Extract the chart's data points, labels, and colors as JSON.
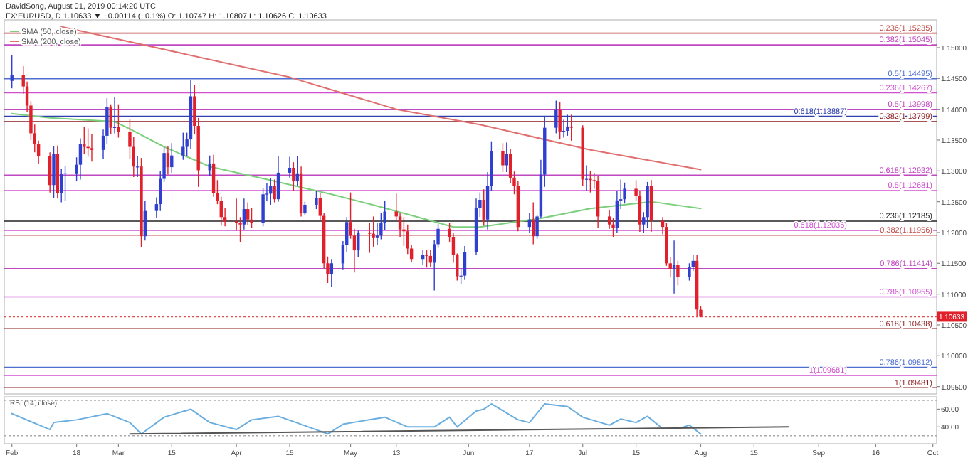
{
  "chart_data": [
    {
      "type": "candlestick",
      "title": "FX:EURUSD, D  1.10633 ▼ −0.00114 (−0.1%) O: 1.10747 H: 1.10807 L: 1.10626 C: 1.10633",
      "annotations": [
        "DavidSong, August 01, 2019 00:14:20 UTC",
        {
          "text": "1.10633",
          "y": 1.10633
        }
      ],
      "x": [
        "2019-02-01",
        "2019-02-04",
        "2019-02-05",
        "2019-02-06",
        "2019-02-07",
        "2019-02-08",
        "2019-02-11",
        "2019-02-12",
        "2019-02-13",
        "2019-02-14",
        "2019-02-15",
        "2019-02-18",
        "2019-02-19",
        "2019-02-20",
        "2019-02-21",
        "2019-02-22",
        "2019-02-25",
        "2019-02-26",
        "2019-02-27",
        "2019-02-28",
        "2019-03-01",
        "2019-03-04",
        "2019-03-05",
        "2019-03-06",
        "2019-03-07",
        "2019-03-08",
        "2019-03-11",
        "2019-03-12",
        "2019-03-13",
        "2019-03-14",
        "2019-03-15",
        "2019-03-18",
        "2019-03-19",
        "2019-03-20",
        "2019-03-21",
        "2019-03-22",
        "2019-03-25",
        "2019-03-26",
        "2019-03-27",
        "2019-03-28",
        "2019-03-29",
        "2019-04-01",
        "2019-04-02",
        "2019-04-03",
        "2019-04-04",
        "2019-04-05",
        "2019-04-08",
        "2019-04-09",
        "2019-04-10",
        "2019-04-11",
        "2019-04-12",
        "2019-04-15",
        "2019-04-16",
        "2019-04-17",
        "2019-04-18",
        "2019-04-19",
        "2019-04-22",
        "2019-04-23",
        "2019-04-24",
        "2019-04-25",
        "2019-04-26",
        "2019-04-29",
        "2019-04-30",
        "2019-05-01",
        "2019-05-02",
        "2019-05-03",
        "2019-05-06",
        "2019-05-07",
        "2019-05-08",
        "2019-05-09",
        "2019-05-10",
        "2019-05-13",
        "2019-05-14",
        "2019-05-15",
        "2019-05-16",
        "2019-05-17",
        "2019-05-20",
        "2019-05-21",
        "2019-05-22",
        "2019-05-23",
        "2019-05-24",
        "2019-05-27",
        "2019-05-28",
        "2019-05-29",
        "2019-05-30",
        "2019-05-31",
        "2019-06-03",
        "2019-06-04",
        "2019-06-05",
        "2019-06-06",
        "2019-06-07",
        "2019-06-10",
        "2019-06-11",
        "2019-06-12",
        "2019-06-13",
        "2019-06-14",
        "2019-06-17",
        "2019-06-18",
        "2019-06-19",
        "2019-06-20",
        "2019-06-21",
        "2019-06-24",
        "2019-06-25",
        "2019-06-26",
        "2019-06-27",
        "2019-06-28",
        "2019-07-01",
        "2019-07-02",
        "2019-07-03",
        "2019-07-04",
        "2019-07-05",
        "2019-07-08",
        "2019-07-09",
        "2019-07-10",
        "2019-07-11",
        "2019-07-12",
        "2019-07-15",
        "2019-07-16",
        "2019-07-17",
        "2019-07-18",
        "2019-07-19",
        "2019-07-22",
        "2019-07-23",
        "2019-07-24",
        "2019-07-25",
        "2019-07-26",
        "2019-07-29",
        "2019-07-30",
        "2019-07-31",
        "2019-08-01"
      ],
      "ohlc": [
        [
          1.1446,
          1.1488,
          1.1434,
          1.1455
        ],
        [
          1.1455,
          1.147,
          1.1425,
          1.1437
        ],
        [
          1.1437,
          1.1445,
          1.1395,
          1.1406
        ],
        [
          1.1406,
          1.1413,
          1.135,
          1.1361
        ],
        [
          1.1361,
          1.1375,
          1.133,
          1.1343
        ],
        [
          1.1343,
          1.1349,
          1.1312,
          1.1324
        ],
        [
          1.1324,
          1.133,
          1.1265,
          1.1277
        ],
        [
          1.1277,
          1.134,
          1.1256,
          1.1328
        ],
        [
          1.1328,
          1.1341,
          1.1255,
          1.1264
        ],
        [
          1.1264,
          1.1303,
          1.1249,
          1.1295
        ],
        [
          1.1295,
          1.1308,
          1.1251,
          1.1296
        ],
        [
          1.1296,
          1.1322,
          1.1283,
          1.131
        ],
        [
          1.131,
          1.1353,
          1.1286,
          1.1343
        ],
        [
          1.1343,
          1.1372,
          1.1327,
          1.1339
        ],
        [
          1.1339,
          1.1369,
          1.1323,
          1.1337
        ],
        [
          1.1337,
          1.136,
          1.1315,
          1.1334
        ],
        [
          1.1334,
          1.1367,
          1.132,
          1.1357
        ],
        [
          1.1357,
          1.1418,
          1.1343,
          1.1403
        ],
        [
          1.1403,
          1.1408,
          1.136,
          1.137
        ],
        [
          1.137,
          1.142,
          1.1361,
          1.1371
        ],
        [
          1.1371,
          1.1408,
          1.1354,
          1.1363
        ],
        [
          1.1363,
          1.1384,
          1.132,
          1.1339
        ],
        [
          1.1339,
          1.1355,
          1.129,
          1.1307
        ],
        [
          1.1307,
          1.1324,
          1.129,
          1.1307
        ],
        [
          1.1307,
          1.1321,
          1.1176,
          1.1194
        ],
        [
          1.1194,
          1.1251,
          1.1187,
          1.1235
        ],
        [
          1.1235,
          1.1257,
          1.1223,
          1.1246
        ],
        [
          1.1246,
          1.13,
          1.1235,
          1.1287
        ],
        [
          1.1287,
          1.1338,
          1.1282,
          1.1329
        ],
        [
          1.1329,
          1.134,
          1.1294,
          1.1306
        ],
        [
          1.1306,
          1.1345,
          1.1297,
          1.1325
        ],
        [
          1.1325,
          1.1362,
          1.1318,
          1.1339
        ],
        [
          1.1339,
          1.1362,
          1.1324,
          1.1351
        ],
        [
          1.1351,
          1.1448,
          1.1335,
          1.1421
        ],
        [
          1.1421,
          1.1439,
          1.136,
          1.1373
        ],
        [
          1.1373,
          1.1386,
          1.1274,
          1.1301
        ],
        [
          1.1301,
          1.1325,
          1.1292,
          1.1312
        ],
        [
          1.1312,
          1.1326,
          1.1258,
          1.1264
        ],
        [
          1.1264,
          1.1285,
          1.1246,
          1.1251
        ],
        [
          1.1251,
          1.1258,
          1.1211,
          1.1225
        ],
        [
          1.1225,
          1.124,
          1.121,
          1.1218
        ],
        [
          1.1218,
          1.1255,
          1.1203,
          1.1215
        ],
        [
          1.1215,
          1.1225,
          1.1184,
          1.1213
        ],
        [
          1.1213,
          1.1255,
          1.1205,
          1.1238
        ],
        [
          1.1238,
          1.1249,
          1.1212,
          1.1221
        ],
        [
          1.1221,
          1.124,
          1.1208,
          1.1216
        ],
        [
          1.1216,
          1.1272,
          1.121,
          1.1262
        ],
        [
          1.1262,
          1.128,
          1.1252,
          1.1263
        ],
        [
          1.1263,
          1.1288,
          1.1245,
          1.1275
        ],
        [
          1.1275,
          1.1286,
          1.1249,
          1.1254
        ],
        [
          1.1254,
          1.1324,
          1.125,
          1.1297
        ],
        [
          1.1297,
          1.1323,
          1.1289,
          1.1305
        ],
        [
          1.1305,
          1.1314,
          1.1268,
          1.1283
        ],
        [
          1.1283,
          1.1324,
          1.1276,
          1.1296
        ],
        [
          1.1296,
          1.1307,
          1.1226,
          1.1231
        ],
        [
          1.1231,
          1.125,
          1.1228,
          1.1245
        ],
        [
          1.1245,
          1.1268,
          1.1238,
          1.1256
        ],
        [
          1.1256,
          1.1264,
          1.122,
          1.1227
        ],
        [
          1.1227,
          1.1232,
          1.1142,
          1.115
        ],
        [
          1.115,
          1.1161,
          1.1118,
          1.1133
        ],
        [
          1.1133,
          1.1157,
          1.1112,
          1.115
        ],
        [
          1.115,
          1.1186,
          1.1139,
          1.118
        ],
        [
          1.118,
          1.1225,
          1.1168,
          1.1217
        ],
        [
          1.1217,
          1.1265,
          1.119,
          1.1195
        ],
        [
          1.1195,
          1.1206,
          1.1135,
          1.1171
        ],
        [
          1.1171,
          1.1203,
          1.116,
          1.12
        ],
        [
          1.12,
          1.1215,
          1.1167,
          1.1198
        ],
        [
          1.1198,
          1.1226,
          1.1177,
          1.1191
        ],
        [
          1.1191,
          1.1216,
          1.118,
          1.1195
        ],
        [
          1.1195,
          1.1232,
          1.1189,
          1.1215
        ],
        [
          1.1215,
          1.1251,
          1.1204,
          1.1234
        ],
        [
          1.1234,
          1.1263,
          1.1218,
          1.1226
        ],
        [
          1.1226,
          1.1231,
          1.1193,
          1.1205
        ],
        [
          1.1205,
          1.1225,
          1.1178,
          1.1202
        ],
        [
          1.1202,
          1.1213,
          1.1165,
          1.1174
        ],
        [
          1.1174,
          1.118,
          1.1152,
          1.1157
        ],
        [
          1.1157,
          1.1171,
          1.1148,
          1.1164
        ],
        [
          1.1164,
          1.1171,
          1.1143,
          1.1162
        ],
        [
          1.1162,
          1.1172,
          1.1144,
          1.1151
        ],
        [
          1.1151,
          1.1188,
          1.1106,
          1.1181
        ],
        [
          1.1181,
          1.1214,
          1.1175,
          1.1206
        ],
        [
          1.1206,
          1.1216,
          1.1185,
          1.1192
        ],
        [
          1.1192,
          1.12,
          1.1151,
          1.1163
        ],
        [
          1.1163,
          1.1166,
          1.1122,
          1.1129
        ],
        [
          1.1129,
          1.1141,
          1.1116,
          1.113
        ],
        [
          1.113,
          1.1178,
          1.1123,
          1.1168
        ],
        [
          1.1168,
          1.1255,
          1.1164,
          1.124
        ],
        [
          1.124,
          1.1265,
          1.1225,
          1.1253
        ],
        [
          1.1253,
          1.127,
          1.1211,
          1.1221
        ],
        [
          1.1221,
          1.1298,
          1.1205,
          1.1275
        ],
        [
          1.1275,
          1.1348,
          1.1268,
          1.1332
        ],
        [
          1.1332,
          1.1345,
          1.1298,
          1.1309
        ],
        [
          1.1309,
          1.1346,
          1.1298,
          1.1328
        ],
        [
          1.1328,
          1.1335,
          1.128,
          1.1289
        ],
        [
          1.1289,
          1.1299,
          1.1262,
          1.1275
        ],
        [
          1.1275,
          1.1284,
          1.1202,
          1.1209
        ],
        [
          1.1209,
          1.1232,
          1.1199,
          1.1221
        ],
        [
          1.1221,
          1.1249,
          1.1181,
          1.1194
        ],
        [
          1.1194,
          1.1229,
          1.119,
          1.1226
        ],
        [
          1.1226,
          1.1318,
          1.1224,
          1.1294
        ],
        [
          1.1294,
          1.1387,
          1.1274,
          1.137
        ],
        [
          1.137,
          1.1414,
          1.1361,
          1.1399
        ],
        [
          1.1399,
          1.1412,
          1.1351,
          1.1364
        ],
        [
          1.1364,
          1.1383,
          1.1354,
          1.1365
        ],
        [
          1.1365,
          1.1391,
          1.1357,
          1.1372
        ],
        [
          1.1372,
          1.1391,
          1.1349,
          1.137
        ],
        [
          1.137,
          1.1374,
          1.1276,
          1.1286
        ],
        [
          1.1286,
          1.1309,
          1.1267,
          1.1287
        ],
        [
          1.1287,
          1.13,
          1.1265,
          1.1285
        ],
        [
          1.1285,
          1.1297,
          1.1271,
          1.1283
        ],
        [
          1.1283,
          1.1291,
          1.1207,
          1.1226
        ],
        [
          1.1226,
          1.1237,
          1.1206,
          1.1213
        ],
        [
          1.1213,
          1.1223,
          1.1193,
          1.1208
        ],
        [
          1.1208,
          1.1268,
          1.12,
          1.1252
        ],
        [
          1.1252,
          1.1286,
          1.1238,
          1.1254
        ],
        [
          1.1254,
          1.1281,
          1.1247,
          1.1271
        ],
        [
          1.1271,
          1.1285,
          1.1252,
          1.126
        ],
        [
          1.126,
          1.1267,
          1.1201,
          1.1213
        ],
        [
          1.1213,
          1.1233,
          1.12,
          1.1225
        ],
        [
          1.1225,
          1.1282,
          1.1207,
          1.1275
        ],
        [
          1.1275,
          1.1285,
          1.1201,
          1.1219
        ],
        [
          1.1219,
          1.1225,
          1.1197,
          1.1209
        ],
        [
          1.1209,
          1.1215,
          1.1146,
          1.115
        ],
        [
          1.115,
          1.116,
          1.1127,
          1.1141
        ],
        [
          1.1141,
          1.1187,
          1.1101,
          1.1147
        ],
        [
          1.1147,
          1.1154,
          1.1114,
          1.1128
        ],
        [
          1.1128,
          1.115,
          1.1122,
          1.1144
        ],
        [
          1.1144,
          1.1163,
          1.1138,
          1.1154
        ],
        [
          1.1154,
          1.1163,
          1.1065,
          1.1075
        ],
        [
          1.10747,
          1.10807,
          1.10626,
          1.10633
        ]
      ],
      "series": [
        {
          "type": "line",
          "name": "SMA (50, close)",
          "color": "#7ccf7c",
          "x": [
            "2019-02-01",
            "2019-02-11",
            "2019-02-28",
            "2019-03-04",
            "2019-03-13",
            "2019-03-25",
            "2019-04-12",
            "2019-04-26",
            "2019-05-08",
            "2019-05-21",
            "2019-05-28",
            "2019-06-04",
            "2019-06-20",
            "2019-07-03",
            "2019-07-19",
            "2019-08-01"
          ],
          "values": [
            1.1393,
            1.1386,
            1.138,
            1.1368,
            1.1339,
            1.1307,
            1.1282,
            1.1262,
            1.1243,
            1.1221,
            1.1209,
            1.1209,
            1.1223,
            1.1239,
            1.125,
            1.1239
          ]
        },
        {
          "type": "line",
          "name": "SMA (200, close)",
          "color": "#e07070",
          "x": [
            "2019-02-14",
            "2019-04-15",
            "2019-05-13",
            "2019-06-04",
            "2019-07-03",
            "2019-08-01"
          ],
          "values": [
            1.1534,
            1.1452,
            1.14,
            1.1375,
            1.1334,
            1.1302
          ]
        }
      ],
      "xlim": [
        "2019-01-30",
        "2019-10-02"
      ],
      "ylim": [
        1.0938,
        1.1545
      ],
      "yticks": [
        {
          "value": 1.095,
          "label": "1.09500"
        },
        {
          "value": 1.1,
          "label": "1.10000"
        },
        {
          "value": 1.105,
          "label": "1.10500"
        },
        {
          "value": 1.11,
          "label": "1.11000"
        },
        {
          "value": 1.115,
          "label": "1.11500"
        },
        {
          "value": 1.12,
          "label": "1.12000"
        },
        {
          "value": 1.125,
          "label": "1.12500"
        },
        {
          "value": 1.13,
          "label": "1.13000"
        },
        {
          "value": 1.135,
          "label": "1.13500"
        },
        {
          "value": 1.14,
          "label": "1.14000"
        },
        {
          "value": 1.145,
          "label": "1.14500"
        },
        {
          "value": 1.15,
          "label": "1.15000"
        }
      ],
      "tick_labels": "y",
      "legend": "top left",
      "ref_lines": [
        {
          "axis": "y",
          "value": 1.15235,
          "label": "0.236(1.15235)",
          "color": "#c0504d"
        },
        {
          "axis": "y",
          "value": 1.15045,
          "label": "0.382(1.15045)",
          "color": "#c048c0"
        },
        {
          "axis": "y",
          "value": 1.14495,
          "label": "0.5(1.14495)",
          "color": "#4f6fd0"
        },
        {
          "axis": "y",
          "value": 1.14267,
          "label": "0.236(1.14267)",
          "color": "#d050d0"
        },
        {
          "axis": "y",
          "value": 1.13998,
          "label": "0.5(1.13998)",
          "color": "#c048c0"
        },
        {
          "axis": "y",
          "value": 1.13887,
          "label": "0.618(1.13887)",
          "color": "#3040b0"
        },
        {
          "axis": "y",
          "value": 1.13799,
          "label": "0.382(1.13799)",
          "color": "#8b1a1a"
        },
        {
          "axis": "y",
          "value": 1.12932,
          "label": "0.618(1.12932)",
          "color": "#c048c0"
        },
        {
          "axis": "y",
          "value": 1.12681,
          "label": "0.5(1.12681)",
          "color": "#d050d0"
        },
        {
          "axis": "y",
          "value": 1.12185,
          "label": "0.236(1.12185)",
          "color": "#222222"
        },
        {
          "axis": "y",
          "value": 1.12036,
          "label": "0.618(1.12036)",
          "color": "#d050d0"
        },
        {
          "axis": "y",
          "value": 1.11956,
          "label": "0.382(1.11956)",
          "color": "#c0504d"
        },
        {
          "axis": "y",
          "value": 1.11414,
          "label": "0.786(1.11414)",
          "color": "#c048c0"
        },
        {
          "axis": "y",
          "value": 1.10955,
          "label": "0.786(1.10955)",
          "color": "#d050d0"
        },
        {
          "axis": "y",
          "value": 1.10633,
          "color": "#e05050",
          "line_style": "dotted"
        },
        {
          "axis": "y",
          "value": 1.10438,
          "label": "0.618(1.10438)",
          "color": "#8b1a1a"
        },
        {
          "axis": "y",
          "value": 1.09812,
          "label": "0.786(1.09812)",
          "color": "#4f6fd0"
        },
        {
          "axis": "y",
          "value": 1.09681,
          "label": "1(1.09681)",
          "color": "#d050d0"
        },
        {
          "axis": "y",
          "value": 1.09481,
          "label": "1(1.09481)",
          "color": "#8b1a1a"
        }
      ]
    },
    {
      "type": "line",
      "title": "RSI (14, close)",
      "series": [
        {
          "color": "#6aaee0",
          "x": [
            "2019-02-01",
            "2019-02-11",
            "2019-02-12",
            "2019-02-18",
            "2019-02-26",
            "2019-03-04",
            "2019-03-07",
            "2019-03-13",
            "2019-03-20",
            "2019-03-25",
            "2019-04-01",
            "2019-04-05",
            "2019-04-12",
            "2019-04-18",
            "2019-04-25",
            "2019-04-29",
            "2019-05-03",
            "2019-05-10",
            "2019-05-16",
            "2019-05-23",
            "2019-05-27",
            "2019-05-29",
            "2019-06-03",
            "2019-06-05",
            "2019-06-07",
            "2019-06-14",
            "2019-06-17",
            "2019-06-21",
            "2019-06-27",
            "2019-07-01",
            "2019-07-08",
            "2019-07-11",
            "2019-07-15",
            "2019-07-18",
            "2019-07-22",
            "2019-07-26",
            "2019-07-29",
            "2019-08-01"
          ],
          "values": [
            55,
            37,
            45,
            48,
            55,
            45,
            32,
            51,
            60,
            45,
            37,
            48,
            52,
            43,
            32,
            43,
            46,
            51,
            40,
            40,
            51,
            40,
            58,
            60,
            66,
            48,
            45,
            66,
            63,
            51,
            42,
            49,
            45,
            52,
            38,
            38,
            42,
            32
          ]
        },
        {
          "type": "line",
          "color": "#555555",
          "x": [
            "2019-03-04",
            "2019-08-24"
          ],
          "values": [
            32,
            40
          ]
        }
      ],
      "xlim": [
        "2019-01-30",
        "2019-10-02"
      ],
      "xticks": [
        {
          "value": "2019-02-01",
          "label": "Feb"
        },
        {
          "value": "2019-02-18",
          "label": "18"
        },
        {
          "value": "2019-03-01",
          "label": "Mar"
        },
        {
          "value": "2019-03-15",
          "label": "15"
        },
        {
          "value": "2019-04-01",
          "label": "Apr"
        },
        {
          "value": "2019-04-15",
          "label": "15"
        },
        {
          "value": "2019-05-01",
          "label": "May"
        },
        {
          "value": "2019-05-13",
          "label": "13"
        },
        {
          "value": "2019-06-01",
          "label": "Jun"
        },
        {
          "value": "2019-06-17",
          "label": "17"
        },
        {
          "value": "2019-07-01",
          "label": "Jul"
        },
        {
          "value": "2019-07-15",
          "label": "15"
        },
        {
          "value": "2019-08-01",
          "label": "Aug"
        },
        {
          "value": "2019-08-15",
          "label": "15"
        },
        {
          "value": "2019-09-01",
          "label": "Sep"
        },
        {
          "value": "2019-09-16",
          "label": "16"
        },
        {
          "value": "2019-10-01",
          "label": "Oct"
        }
      ],
      "ylim": [
        21,
        74
      ],
      "yticks": [
        {
          "value": 40,
          "label": "40.00"
        },
        {
          "value": 60,
          "label": "60.00"
        }
      ],
      "ref_lines": [
        {
          "axis": "y",
          "value": 70,
          "color": "#aaaaaa",
          "line_style": "dotted"
        },
        {
          "axis": "y",
          "value": 30,
          "color": "#aaaaaa",
          "line_style": "dotted"
        }
      ]
    }
  ]
}
